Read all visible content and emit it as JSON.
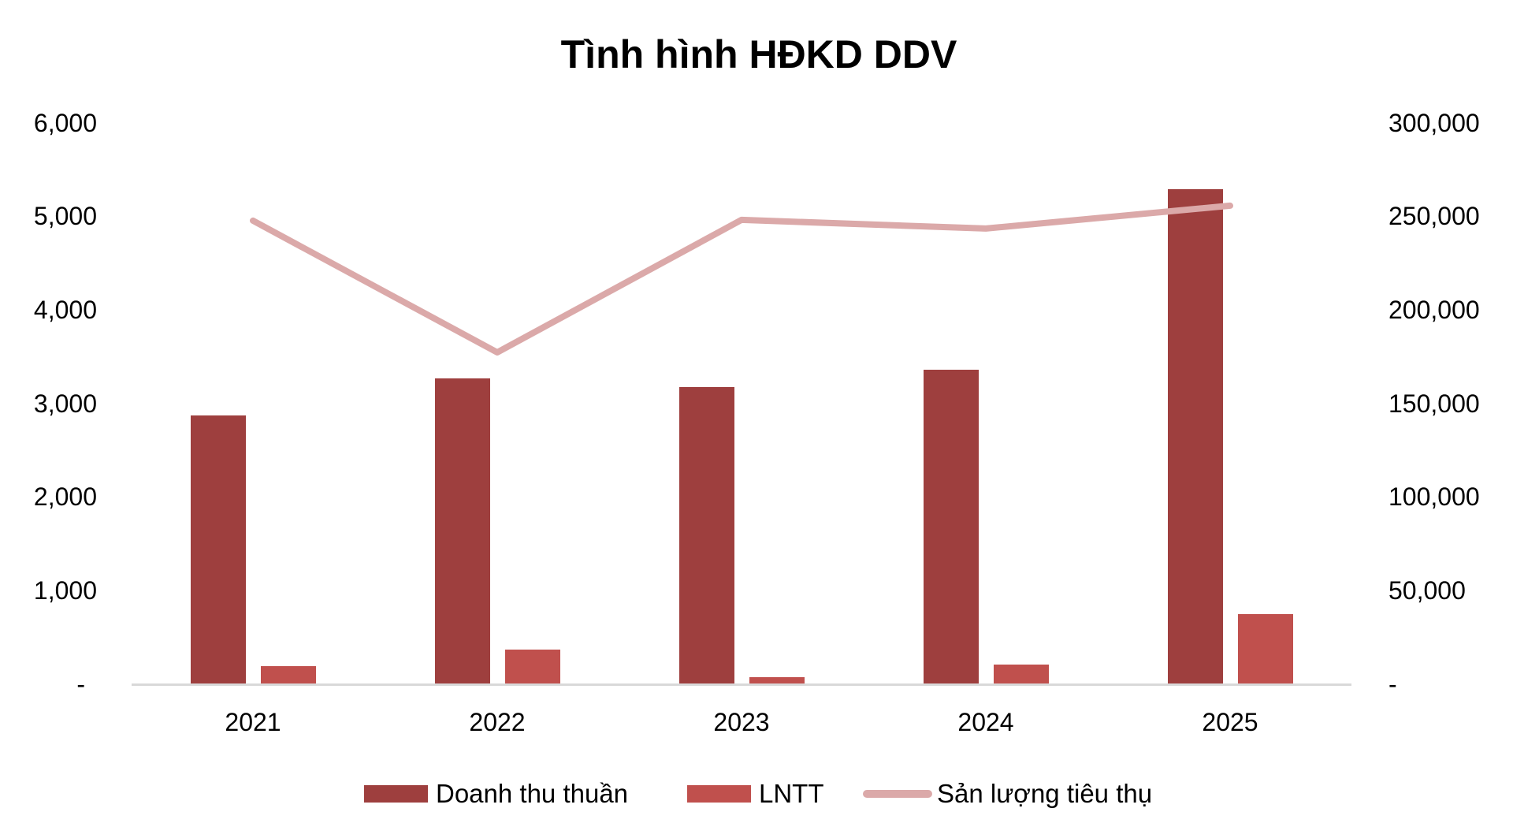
{
  "chart_data": {
    "type": "bar+line",
    "title": "Tình hình HĐKD DDV",
    "categories": [
      "2021",
      "2022",
      "2023",
      "2024",
      "2025"
    ],
    "series": [
      {
        "name": "Doanh thu thuần",
        "type": "bar",
        "axis": "left",
        "color": "#9e3f3e",
        "values": [
          2870,
          3268,
          3176,
          3362,
          5290
        ]
      },
      {
        "name": "LNTT",
        "type": "bar",
        "axis": "left",
        "color": "#c0504d",
        "values": [
          195,
          371,
          76,
          211,
          750
        ]
      },
      {
        "name": "Sản lượng tiêu thụ",
        "type": "line",
        "axis": "right",
        "color": "#dba9a9",
        "values": [
          247800,
          177400,
          248200,
          243600,
          255800
        ]
      }
    ],
    "left_axis": {
      "ylim": [
        0,
        6000
      ],
      "ticks": [
        "-",
        "1,000",
        "2,000",
        "3,000",
        "4,000",
        "5,000",
        "6,000"
      ]
    },
    "right_axis": {
      "ylim": [
        0,
        300000
      ],
      "ticks": [
        "-",
        "50,000",
        "100,000",
        "150,000",
        "200,000",
        "250,000",
        "300,000"
      ]
    },
    "xlabel": "",
    "ylabel": "",
    "grid": false,
    "legend_position": "bottom"
  },
  "title": "Tình hình HĐKD DDV",
  "left_ticks": [
    "6,000",
    "5,000",
    "4,000",
    "3,000",
    "2,000",
    "1,000",
    "-"
  ],
  "right_ticks": [
    "300,000",
    "250,000",
    "200,000",
    "150,000",
    "100,000",
    "50,000",
    "-"
  ],
  "x_labels": [
    "2021",
    "2022",
    "2023",
    "2024",
    "2025"
  ],
  "legend": {
    "revenue": "Doanh thu thuần",
    "profit": "LNTT",
    "volume": "Sản lượng tiêu thụ"
  },
  "colors": {
    "revenue": "#9e3f3e",
    "profit": "#c0504d",
    "volume": "#dba9a9",
    "axis": "#d9d9d9"
  }
}
